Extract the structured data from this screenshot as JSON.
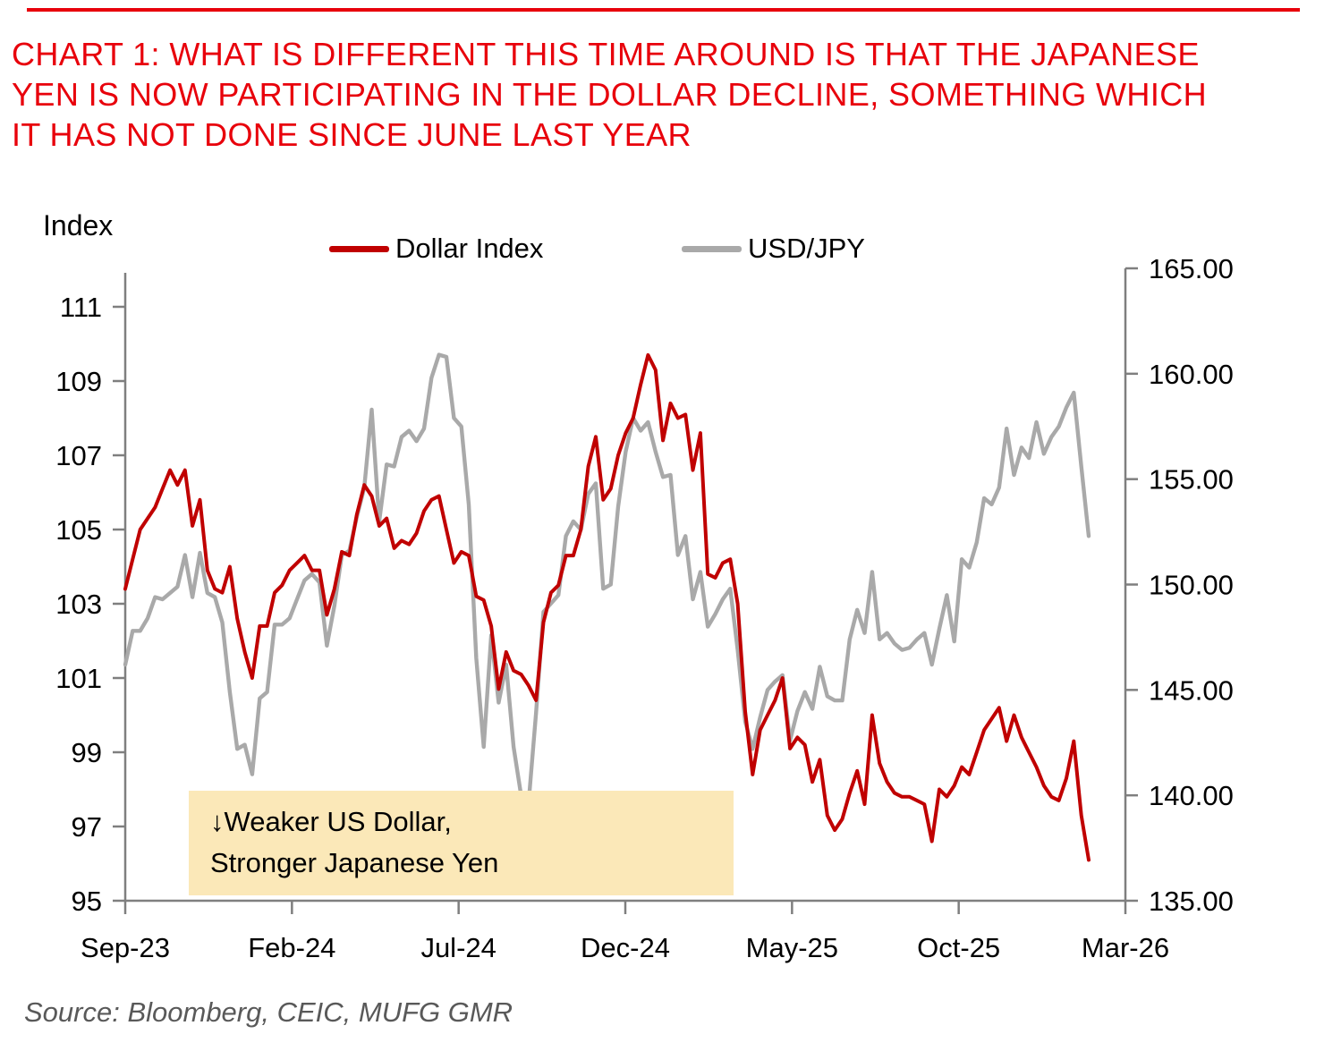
{
  "header": {
    "rule_color": "#e8000b",
    "title_color": "#e8000b",
    "title_lines": [
      "CHART 1: WHAT IS DIFFERENT THIS TIME AROUND IS THAT THE JAPANESE",
      "YEN IS NOW PARTICIPATING IN THE DOLLAR DECLINE, SOMETHING WHICH",
      "IT HAS NOT DONE SINCE JUNE LAST YEAR"
    ]
  },
  "legend": {
    "items": [
      {
        "label": "Dollar Index",
        "color": "#c00000"
      },
      {
        "label": "USD/JPY",
        "color": "#a9a9a9"
      }
    ]
  },
  "chart_data": {
    "type": "line",
    "title": "CHART 1: WHAT IS DIFFERENT THIS TIME AROUND IS THAT THE JAPANESE YEN IS NOW PARTICIPATING IN THE DOLLAR DECLINE, SOMETHING WHICH IT HAS NOT DONE SINCE JUNE LAST YEAR",
    "grid": false,
    "legend_position": "top",
    "axis_color": "#7f7f7f",
    "x_axis": {
      "start": "Sep-23",
      "end": "Mar-26",
      "tick_labels": [
        "Sep-23",
        "Feb-24",
        "Jul-24",
        "Dec-24",
        "May-25",
        "Oct-25",
        "Mar-26"
      ],
      "tick_months": [
        0,
        5,
        10,
        15,
        20,
        25,
        30
      ],
      "range_months": [
        0,
        30
      ]
    },
    "y_left": {
      "title": "Index",
      "min": 95,
      "max": 111,
      "tick_step": 2,
      "tick_values": [
        111,
        109,
        107,
        105,
        103,
        101,
        99,
        97,
        95
      ],
      "tick_labels": [
        "111",
        "109",
        "107",
        "105",
        "103",
        "101",
        "99",
        "97",
        "95"
      ],
      "series": "Dollar Index"
    },
    "y_right": {
      "min": 135,
      "max": 165,
      "tick_step": 5,
      "tick_values": [
        165,
        160,
        155,
        150,
        145,
        140,
        135
      ],
      "tick_labels": [
        "165.00",
        "160.00",
        "155.00",
        "150.00",
        "145.00",
        "140.00",
        "135.00"
      ],
      "series": "USD/JPY"
    },
    "series": [
      {
        "name": "Dollar Index",
        "axis": "left",
        "color": "#c00000",
        "start_month": 0,
        "end_month": 28.9,
        "sampling": "weekly",
        "values": [
          103.4,
          104.2,
          105.0,
          105.3,
          105.6,
          106.1,
          106.6,
          106.2,
          106.6,
          105.1,
          105.8,
          103.9,
          103.4,
          103.3,
          104.0,
          102.6,
          101.7,
          101.0,
          102.4,
          102.4,
          103.3,
          103.5,
          103.9,
          104.1,
          104.3,
          103.9,
          103.9,
          102.7,
          103.4,
          104.4,
          104.3,
          105.4,
          106.2,
          105.9,
          105.1,
          105.3,
          104.5,
          104.7,
          104.6,
          104.9,
          105.5,
          105.8,
          105.9,
          105.0,
          104.1,
          104.4,
          104.3,
          103.2,
          103.1,
          102.4,
          100.7,
          101.7,
          101.2,
          101.1,
          100.8,
          100.4,
          102.5,
          103.3,
          103.5,
          104.3,
          104.3,
          105.0,
          106.7,
          107.5,
          105.8,
          106.1,
          107.0,
          107.6,
          108.0,
          108.9,
          109.7,
          109.3,
          107.4,
          108.4,
          108.0,
          108.1,
          106.6,
          107.6,
          103.8,
          103.7,
          104.1,
          104.2,
          103.0,
          100.1,
          98.4,
          99.6,
          100.0,
          100.4,
          101.0,
          99.1,
          99.4,
          99.2,
          98.2,
          98.8,
          97.3,
          96.9,
          97.2,
          97.9,
          98.5,
          97.6,
          100.0,
          98.7,
          98.2,
          97.9,
          97.8,
          97.8,
          97.7,
          97.6,
          96.6,
          98.0,
          97.8,
          98.1,
          98.6,
          98.4,
          99.0,
          99.6,
          99.9,
          100.2,
          99.3,
          100.0,
          99.4,
          99.0,
          98.6,
          98.1,
          97.8,
          97.7,
          98.3,
          99.3,
          97.3,
          96.1
        ]
      },
      {
        "name": "USD/JPY",
        "axis": "right",
        "color": "#a9a9a9",
        "start_month": 0,
        "end_month": 28.9,
        "sampling": "weekly",
        "values": [
          146.2,
          147.8,
          147.8,
          148.4,
          149.4,
          149.3,
          149.6,
          149.9,
          151.4,
          149.4,
          151.5,
          149.6,
          149.4,
          148.2,
          144.9,
          142.2,
          142.4,
          141.0,
          144.6,
          144.9,
          148.1,
          148.1,
          148.4,
          149.3,
          150.2,
          150.5,
          150.1,
          147.1,
          149.0,
          151.4,
          151.6,
          153.2,
          154.6,
          158.3,
          153.0,
          155.7,
          155.6,
          157.0,
          157.3,
          156.8,
          157.4,
          159.8,
          160.9,
          160.8,
          157.9,
          157.5,
          153.8,
          146.5,
          142.3,
          147.6,
          144.4,
          146.2,
          142.3,
          140.0,
          139.6,
          143.9,
          148.7,
          149.1,
          149.5,
          152.3,
          153.0,
          152.6,
          154.3,
          154.8,
          149.8,
          150.0,
          153.7,
          156.3,
          157.9,
          157.3,
          157.7,
          156.3,
          155.1,
          155.2,
          151.4,
          152.3,
          149.3,
          150.6,
          148.0,
          148.6,
          149.3,
          149.8,
          146.9,
          143.5,
          142.2,
          143.7,
          145.0,
          145.4,
          145.7,
          142.6,
          144.0,
          144.9,
          144.1,
          146.1,
          144.7,
          144.5,
          144.5,
          147.4,
          148.8,
          147.7,
          150.6,
          147.4,
          147.7,
          147.2,
          146.9,
          147.0,
          147.4,
          147.7,
          146.2,
          147.9,
          149.5,
          147.3,
          151.2,
          150.8,
          152.0,
          154.1,
          153.8,
          154.6,
          157.4,
          155.2,
          156.5,
          156.0,
          157.7,
          156.2,
          157.0,
          157.5,
          158.4,
          159.1,
          155.6,
          152.3
        ]
      }
    ],
    "annotation": {
      "lines": [
        "↓Weaker US Dollar,",
        "Stronger Japanese Yen"
      ],
      "bg_color": "#fbe8b8"
    }
  },
  "source_note": "Source: Bloomberg, CEIC, MUFG GMR"
}
